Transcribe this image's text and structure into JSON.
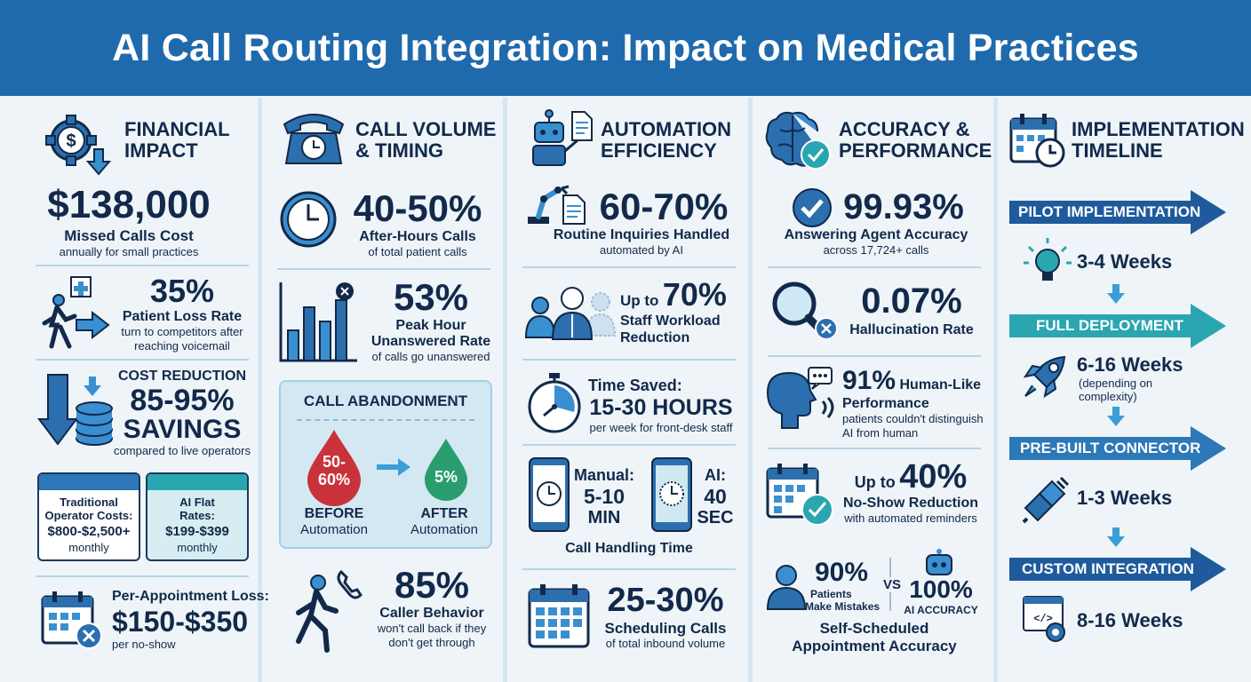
{
  "header": {
    "title": "AI Call Routing Integration: Impact on Medical Practices"
  },
  "financial": {
    "title_l1": "FINANCIAL",
    "title_l2": "IMPACT",
    "missed": {
      "value": "$138,000",
      "label": "Missed Calls Cost",
      "sub": "annually for small practices"
    },
    "loss": {
      "value": "35%",
      "label": "Patient Loss Rate",
      "sub1": "turn to competitors after",
      "sub2": "reaching voicemail"
    },
    "cost": {
      "heading": "COST REDUCTION",
      "value": "85-95%",
      "label": "SAVINGS",
      "sub": "compared to live operators"
    },
    "traditional": {
      "l1": "Traditional",
      "l2": "Operator Costs:",
      "value": "$800-$2,500+",
      "period": "monthly"
    },
    "ai_flat": {
      "l1": "AI Flat",
      "l2": "Rates:",
      "value": "$199-$399",
      "period": "monthly"
    },
    "appointment": {
      "label": "Per-Appointment Loss:",
      "value": "$150-$350",
      "sub": "per no-show"
    }
  },
  "volume": {
    "title_l1": "CALL VOLUME",
    "title_l2": "& TIMING",
    "after_hours": {
      "value": "40-50%",
      "label": "After-Hours Calls",
      "sub": "of total patient calls"
    },
    "peak": {
      "value": "53%",
      "label_l1": "Peak Hour",
      "label_l2": "Unanswered Rate",
      "sub": "of calls go unanswered"
    },
    "abandon": {
      "title": "CALL ABANDONMENT",
      "before_value_l1": "50-",
      "before_value_l2": "60%",
      "before_l1": "BEFORE",
      "before_l2": "Automation",
      "after_value": "5%",
      "after_l1": "AFTER",
      "after_l2": "Automation"
    },
    "behavior": {
      "value": "85%",
      "label": "Caller Behavior",
      "sub1": "won't call back if they",
      "sub2": "don't get through"
    }
  },
  "automation": {
    "title_l1": "AUTOMATION",
    "title_l2": "EFFICIENCY",
    "routine": {
      "value": "60-70%",
      "label": "Routine Inquiries Handled",
      "sub": "automated by AI"
    },
    "workload": {
      "prefix": "Up to",
      "value": "70%",
      "label_l1": "Staff Workload",
      "label_l2": "Reduction"
    },
    "time": {
      "label": "Time Saved:",
      "value": "15-30 HOURS",
      "sub": "per week for front-desk staff"
    },
    "manual": {
      "label": "Manual:",
      "value_l1": "5-10",
      "value_l2": "MIN"
    },
    "ai": {
      "label": "AI:",
      "value_l1": "40",
      "value_l2": "SEC"
    },
    "handling_label": "Call Handling Time",
    "scheduling": {
      "value": "25-30%",
      "label": "Scheduling Calls",
      "sub": "of total inbound volume"
    }
  },
  "accuracy": {
    "title_l1": "ACCURACY &",
    "title_l2": "PERFORMANCE",
    "agent": {
      "value": "99.93%",
      "label": "Answering Agent Accuracy",
      "sub": "across 17,724+ calls"
    },
    "halluc": {
      "value": "0.07%",
      "label": "Hallucination Rate"
    },
    "human": {
      "value": "91%",
      "label_l1": "Human-Like",
      "label_l2": "Performance",
      "sub1": "patients couldn't distinguish",
      "sub2": "AI from human"
    },
    "noshow": {
      "prefix": "Up to",
      "value": "40%",
      "label": "No-Show Reduction",
      "sub": "with automated reminders"
    },
    "patients": {
      "value": "90%",
      "l1": "Patients",
      "l2": "Make Mistakes"
    },
    "vs": "VS",
    "ai_acc": {
      "value": "100%",
      "label": "AI ACCURACY"
    },
    "self_l1": "Self-Scheduled",
    "self_l2": "Appointment Accuracy"
  },
  "timeline": {
    "title_l1": "IMPLEMENTATION",
    "title_l2": "TIMELINE",
    "pilot": {
      "label": "PILOT IMPLEMENTATION",
      "duration": "3-4 Weeks"
    },
    "full": {
      "label": "FULL DEPLOYMENT",
      "duration": "6-16 Weeks",
      "note_l1": "(depending on",
      "note_l2": "complexity)"
    },
    "prebuilt": {
      "label": "PRE-BUILT CONNECTOR",
      "duration": "1-3 Weeks"
    },
    "custom": {
      "label": "CUSTOM INTEGRATION",
      "duration": "8-16 Weeks"
    }
  },
  "colors": {
    "navy": "#12294a",
    "blue": "#1f6aac",
    "teal": "#2aa6b0",
    "red": "#c9323a",
    "green": "#2a9d6f"
  }
}
